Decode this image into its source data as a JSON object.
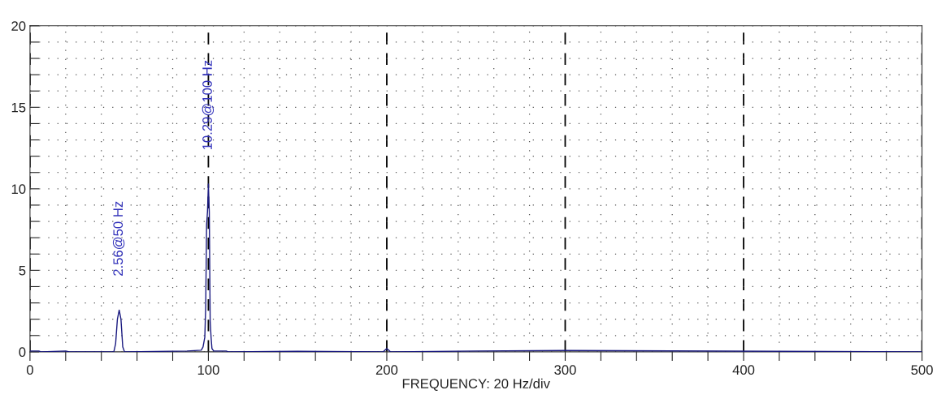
{
  "chart_data": {
    "type": "line",
    "xlabel": "FREQUENCY: 20 Hz/div",
    "series": [
      {
        "color": "#1a1a80",
        "x": [
          0,
          5,
          6,
          20,
          22,
          47,
          48,
          49,
          50,
          51,
          52,
          53,
          88,
          96,
          97,
          98,
          98.5,
          99,
          99.5,
          100,
          100.5,
          101,
          101.5,
          102,
          103,
          110,
          111,
          150,
          198,
          200,
          202,
          250,
          300,
          500
        ],
        "values": [
          0.05,
          0.05,
          0,
          0.05,
          0,
          0,
          0.5,
          2.0,
          2.56,
          2.0,
          0.3,
          0,
          0.05,
          0.1,
          0.3,
          0.9,
          2.8,
          7.8,
          8.6,
          10.29,
          8.6,
          1.9,
          0.9,
          0.2,
          0.05,
          0.05,
          0,
          0.03,
          0,
          0.2,
          0,
          0.05,
          0.08,
          0
        ]
      }
    ],
    "annotations": [
      {
        "text": "2.56@50 Hz",
        "x": 50,
        "y": 2.56
      },
      {
        "text": "10.29@100 Hz",
        "x": 100,
        "y": 10.29
      }
    ],
    "xlim": [
      0,
      500
    ],
    "ylim": [
      0,
      20
    ],
    "xticks": [
      0,
      {
        "value": 20,
        "label": null
      },
      {
        "value": 40,
        "label": null
      },
      {
        "value": 60,
        "label": null
      },
      {
        "value": 80,
        "label": null
      },
      100,
      {
        "value": 120,
        "label": null
      },
      {
        "value": 140,
        "label": null
      },
      {
        "value": 160,
        "label": null
      },
      {
        "value": 180,
        "label": null
      },
      200,
      {
        "value": 220,
        "label": null
      },
      {
        "value": 240,
        "label": null
      },
      {
        "value": 260,
        "label": null
      },
      {
        "value": 280,
        "label": null
      },
      300,
      {
        "value": 320,
        "label": null
      },
      {
        "value": 340,
        "label": null
      },
      {
        "value": 360,
        "label": null
      },
      {
        "value": 380,
        "label": null
      },
      400,
      {
        "value": 420,
        "label": null
      },
      {
        "value": 440,
        "label": null
      },
      {
        "value": 460,
        "label": null
      },
      {
        "value": 480,
        "label": null
      },
      500
    ],
    "yticks": [
      0,
      {
        "value": 1,
        "label": null
      },
      {
        "value": 2,
        "label": null
      },
      {
        "value": 3,
        "label": null
      },
      {
        "value": 4,
        "label": null
      },
      5,
      {
        "value": 6,
        "label": null
      },
      {
        "value": 7,
        "label": null
      },
      {
        "value": 8,
        "label": null
      },
      {
        "value": 9,
        "label": null
      },
      10,
      {
        "value": 11,
        "label": null
      },
      {
        "value": 12,
        "label": null
      },
      {
        "value": 13,
        "label": null
      },
      {
        "value": 14,
        "label": null
      },
      15,
      {
        "value": 16,
        "label": null
      },
      {
        "value": 17,
        "label": null
      },
      {
        "value": 18,
        "label": null
      },
      {
        "value": 19,
        "label": null
      },
      20
    ],
    "grid": true,
    "line_style": "solid",
    "marker": "none"
  }
}
